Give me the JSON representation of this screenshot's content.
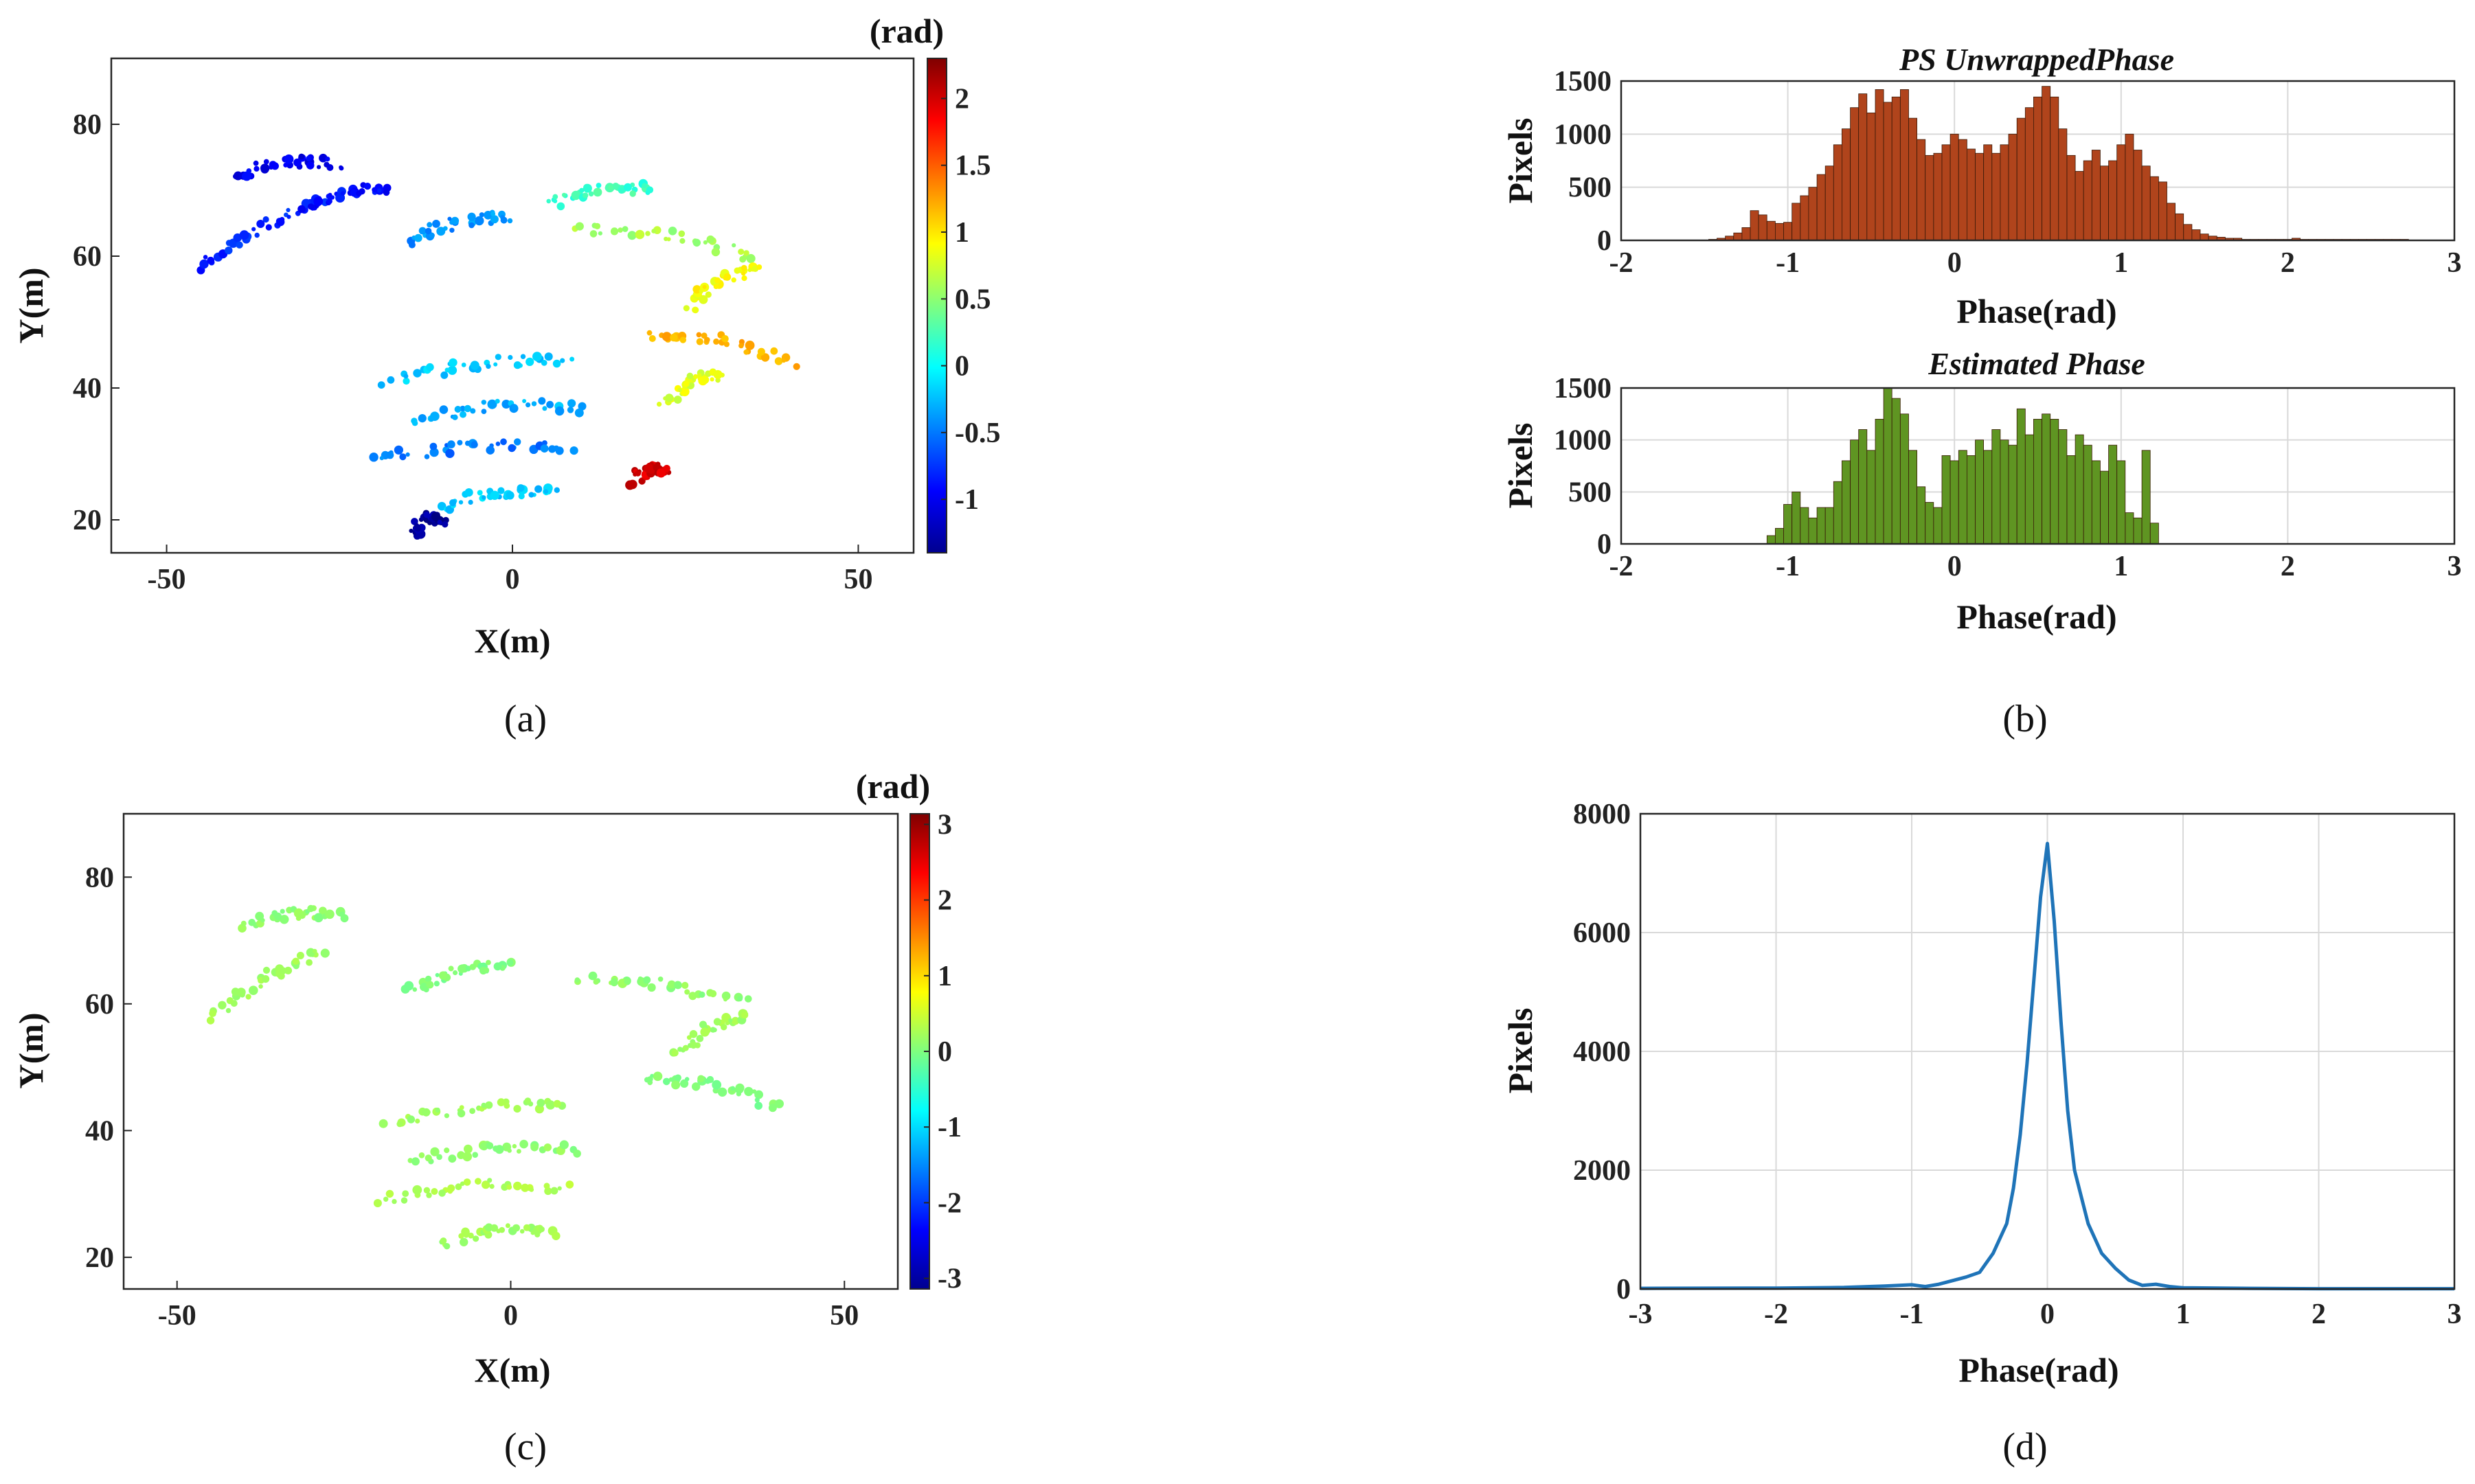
{
  "chart_data": [
    {
      "type": "scatter",
      "panel": "(a)",
      "title": "",
      "xlabel": "X(m)",
      "ylabel": "Y(m)",
      "xlim": [
        -58,
        58
      ],
      "ylim": [
        15,
        90
      ],
      "xticks": [
        "-50",
        "0",
        "50"
      ],
      "yticks": [
        "20",
        "40",
        "60",
        "80"
      ],
      "colorbar": {
        "label": "(rad)",
        "range": [
          -1.4,
          2.3
        ],
        "ticks": [
          "2",
          "1.5",
          "1",
          "0.5",
          "0",
          "-0.5",
          "-1"
        ]
      },
      "description_of_points": "PS unwrapped phase map, fan-shaped radar footprint",
      "arcs": [
        {
          "x": [
            -40,
            -25
          ],
          "y": [
            72,
            74
          ],
          "value": -1.0
        },
        {
          "x": [
            -45,
            -28
          ],
          "y": [
            58,
            68
          ],
          "value": -0.8
        },
        {
          "x": [
            -30,
            -18
          ],
          "y": [
            67,
            70
          ],
          "value": -0.9
        },
        {
          "x": [
            -15,
            0
          ],
          "y": [
            62,
            66
          ],
          "value": -0.4
        },
        {
          "x": [
            -18,
            8
          ],
          "y": [
            41,
            44
          ],
          "value": -0.2
        },
        {
          "x": [
            -15,
            10
          ],
          "y": [
            35,
            37
          ],
          "value": -0.3
        },
        {
          "x": [
            -20,
            8
          ],
          "y": [
            29,
            31
          ],
          "value": -0.5
        },
        {
          "x": [
            -10,
            6
          ],
          "y": [
            22,
            24
          ],
          "value": -0.2
        },
        {
          "x": [
            10,
            35
          ],
          "y": [
            64,
            60
          ],
          "value": 0.6
        },
        {
          "x": [
            20,
            40
          ],
          "y": [
            48,
            44
          ],
          "value": 1.2
        },
        {
          "x": [
            22,
            30
          ],
          "y": [
            38,
            42
          ],
          "value": 0.8
        },
        {
          "x": [
            25,
            35
          ],
          "y": [
            52,
            58
          ],
          "value": 0.9
        },
        {
          "x": [
            -14,
            -10
          ],
          "y": [
            18,
            20
          ],
          "value": -1.3
        },
        {
          "x": [
            5,
            20
          ],
          "y": [
            68,
            70
          ],
          "value": 0.2
        },
        {
          "x": [
            18,
            22
          ],
          "y": [
            26,
            27
          ],
          "value": 2.0
        }
      ]
    },
    {
      "type": "bar",
      "panel": "(b)",
      "title": "PS UnwrappedPhase",
      "xlabel": "Phase(rad)",
      "ylabel": "Pixels",
      "xlim": [
        -2,
        3
      ],
      "ylim": [
        0,
        1500
      ],
      "xticks": [
        "-2",
        "-1",
        "0",
        "1",
        "2",
        "3"
      ],
      "yticks": [
        "0",
        "500",
        "1000",
        "1500"
      ],
      "bin_centers": [
        -1.45,
        -1.4,
        -1.35,
        -1.3,
        -1.25,
        -1.2,
        -1.15,
        -1.1,
        -1.05,
        -1.0,
        -0.95,
        -0.9,
        -0.85,
        -0.8,
        -0.75,
        -0.7,
        -0.65,
        -0.6,
        -0.55,
        -0.5,
        -0.45,
        -0.4,
        -0.35,
        -0.3,
        -0.25,
        -0.2,
        -0.15,
        -0.1,
        -0.05,
        0.0,
        0.05,
        0.1,
        0.15,
        0.2,
        0.25,
        0.3,
        0.35,
        0.4,
        0.45,
        0.5,
        0.55,
        0.6,
        0.65,
        0.7,
        0.75,
        0.8,
        0.85,
        0.9,
        0.95,
        1.0,
        1.05,
        1.1,
        1.15,
        1.2,
        1.25,
        1.3,
        1.35,
        1.4,
        1.45,
        1.5,
        1.55,
        1.6,
        1.65,
        1.7,
        1.75,
        1.8,
        1.85,
        1.9,
        1.95,
        2.0,
        2.05,
        2.1,
        2.15,
        2.2,
        2.25,
        2.3,
        2.35,
        2.4,
        2.45,
        2.5,
        2.55,
        2.6,
        2.65,
        2.7
      ],
      "values": [
        10,
        20,
        40,
        70,
        120,
        280,
        240,
        180,
        160,
        170,
        350,
        420,
        500,
        620,
        700,
        900,
        1050,
        1250,
        1380,
        1200,
        1420,
        1300,
        1350,
        1420,
        1150,
        950,
        800,
        820,
        900,
        1000,
        950,
        860,
        820,
        900,
        820,
        900,
        1000,
        1150,
        1250,
        1350,
        1450,
        1350,
        1050,
        800,
        650,
        750,
        850,
        700,
        750,
        900,
        1000,
        850,
        700,
        600,
        550,
        350,
        250,
        150,
        100,
        60,
        40,
        30,
        20,
        20,
        10,
        10,
        10,
        10,
        10,
        10,
        20,
        10,
        10,
        10,
        10,
        10,
        10,
        10,
        10,
        10,
        10,
        10,
        10,
        10
      ],
      "color": "#b0441c"
    },
    {
      "type": "bar",
      "panel": "(b)",
      "title": "Estimated Phase",
      "xlabel": "Phase(rad)",
      "ylabel": "Pixels",
      "xlim": [
        -2,
        3
      ],
      "ylim": [
        0,
        1500
      ],
      "xticks": [
        "-2",
        "-1",
        "0",
        "1",
        "2",
        "3"
      ],
      "yticks": [
        "0",
        "500",
        "1000",
        "1500"
      ],
      "bin_centers": [
        -1.1,
        -1.05,
        -1.0,
        -0.95,
        -0.9,
        -0.85,
        -0.8,
        -0.75,
        -0.7,
        -0.65,
        -0.6,
        -0.55,
        -0.5,
        -0.45,
        -0.4,
        -0.35,
        -0.3,
        -0.25,
        -0.2,
        -0.15,
        -0.1,
        -0.05,
        0.0,
        0.05,
        0.1,
        0.15,
        0.2,
        0.25,
        0.3,
        0.35,
        0.4,
        0.45,
        0.5,
        0.55,
        0.6,
        0.65,
        0.7,
        0.75,
        0.8,
        0.85,
        0.9,
        0.95,
        1.0,
        1.05,
        1.1,
        1.15,
        1.2
      ],
      "values": [
        80,
        150,
        380,
        500,
        350,
        250,
        350,
        350,
        600,
        800,
        1000,
        1100,
        900,
        1200,
        1500,
        1400,
        1250,
        900,
        550,
        400,
        350,
        850,
        800,
        900,
        850,
        1000,
        900,
        1100,
        1000,
        950,
        1300,
        1050,
        1200,
        1250,
        1200,
        1100,
        850,
        1050,
        950,
        800,
        700,
        950,
        800,
        300,
        250,
        900,
        200
      ],
      "color": "#5f9522"
    },
    {
      "type": "scatter",
      "panel": "(c)",
      "title": "",
      "xlabel": "X(m)",
      "ylabel": "Y(m)",
      "xlim": [
        -58,
        58
      ],
      "ylim": [
        15,
        90
      ],
      "xticks": [
        "-50",
        "0",
        "50"
      ],
      "yticks": [
        "20",
        "40",
        "60",
        "80"
      ],
      "colorbar": {
        "label": "(rad)",
        "range": [
          -3.14,
          3.14
        ],
        "ticks": [
          "3",
          "2",
          "1",
          "0",
          "-1",
          "-2",
          "-3"
        ]
      },
      "description_of_points": "Residual phase map (mostly near zero)",
      "arcs": [
        {
          "x": [
            -40,
            -25
          ],
          "y": [
            72,
            74
          ],
          "value": 0.1
        },
        {
          "x": [
            -45,
            -28
          ],
          "y": [
            58,
            68
          ],
          "value": 0.2
        },
        {
          "x": [
            -15,
            0
          ],
          "y": [
            62,
            66
          ],
          "value": 0.0
        },
        {
          "x": [
            -18,
            8
          ],
          "y": [
            41,
            44
          ],
          "value": 0.2
        },
        {
          "x": [
            -15,
            10
          ],
          "y": [
            35,
            37
          ],
          "value": 0.1
        },
        {
          "x": [
            -20,
            8
          ],
          "y": [
            29,
            31
          ],
          "value": 0.3
        },
        {
          "x": [
            -10,
            6
          ],
          "y": [
            22,
            24
          ],
          "value": 0.2
        },
        {
          "x": [
            10,
            35
          ],
          "y": [
            64,
            60
          ],
          "value": 0.1
        },
        {
          "x": [
            20,
            40
          ],
          "y": [
            48,
            44
          ],
          "value": 0.0
        },
        {
          "x": [
            25,
            35
          ],
          "y": [
            52,
            58
          ],
          "value": 0.2
        }
      ]
    },
    {
      "type": "line",
      "panel": "(d)",
      "title": "",
      "xlabel": "Phase(rad)",
      "ylabel": "Pixels",
      "xlim": [
        -3,
        3
      ],
      "ylim": [
        0,
        8000
      ],
      "xticks": [
        "-3",
        "-2",
        "-1",
        "0",
        "1",
        "2",
        "3"
      ],
      "yticks": [
        "0",
        "2000",
        "4000",
        "6000",
        "8000"
      ],
      "x": [
        -3.0,
        -2.0,
        -1.5,
        -1.2,
        -1.0,
        -0.9,
        -0.8,
        -0.6,
        -0.5,
        -0.4,
        -0.3,
        -0.25,
        -0.2,
        -0.15,
        -0.1,
        -0.05,
        0.0,
        0.05,
        0.1,
        0.15,
        0.2,
        0.3,
        0.4,
        0.5,
        0.6,
        0.7,
        0.8,
        0.9,
        1.0,
        1.5,
        2.0,
        3.0
      ],
      "y": [
        10,
        15,
        25,
        50,
        70,
        40,
        80,
        200,
        280,
        600,
        1100,
        1700,
        2600,
        3800,
        5200,
        6600,
        7500,
        6200,
        4500,
        3000,
        2000,
        1100,
        600,
        350,
        150,
        60,
        80,
        40,
        20,
        10,
        5,
        5
      ],
      "color": "#1f74b8"
    }
  ],
  "panel_labels": [
    "(a)",
    "(b)",
    "(c)",
    "(d)"
  ]
}
